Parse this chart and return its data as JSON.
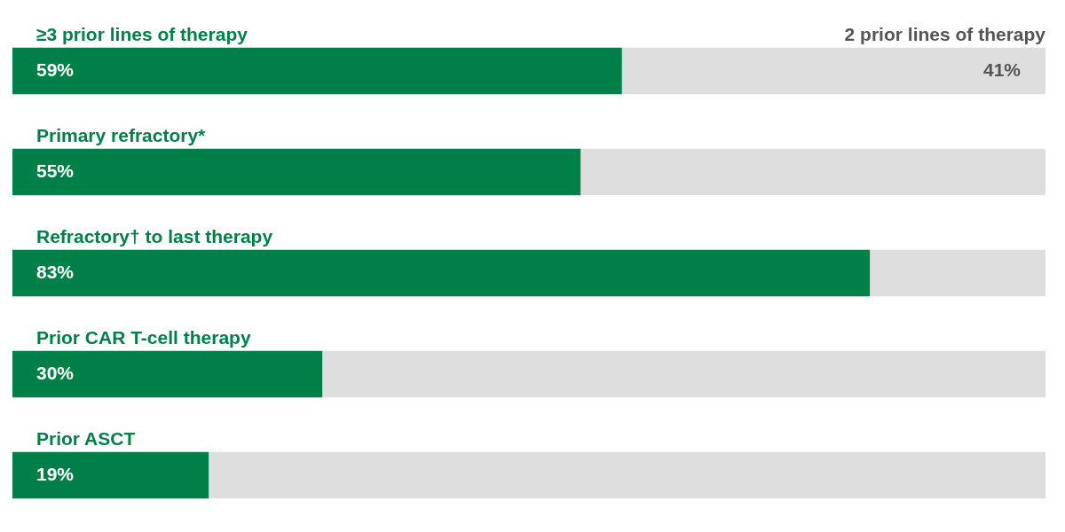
{
  "chart_data": {
    "type": "bar",
    "orientation": "horizontal",
    "stacked": true,
    "categories": [
      "≥3 prior lines of therapy",
      "Primary refractory*",
      "Refractory† to last therapy",
      "Prior CAR T-cell therapy",
      "Prior ASCT"
    ],
    "series": [
      {
        "color": "#008049",
        "values": [
          59,
          55,
          83,
          30,
          19
        ],
        "value_labels": [
          "59%",
          "55%",
          "83%",
          "30%",
          "19%"
        ]
      },
      {
        "color": "#dedede",
        "values": [
          41,
          45,
          17,
          70,
          81
        ],
        "value_labels": [
          "41%",
          null,
          null,
          null,
          null
        ]
      }
    ],
    "xlim": [
      0,
      100
    ],
    "tick_labels": "y",
    "grid": false,
    "legend": false,
    "annotations": [
      {
        "text": "2 prior lines of therapy",
        "x": 100,
        "y": "≥3 prior lines of therapy"
      }
    ]
  }
}
